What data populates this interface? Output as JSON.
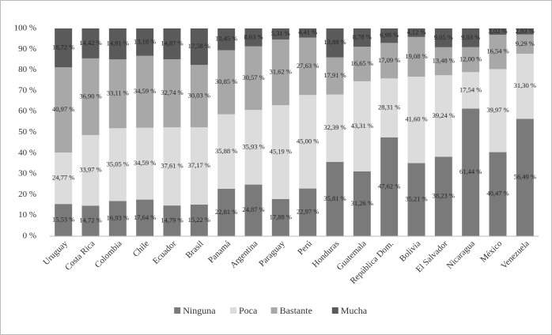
{
  "chart_data": {
    "type": "stacked-bar",
    "categories": [
      "Uruguay",
      "Costa Rica",
      "Colombia",
      "Chile",
      "Ecuador",
      "Brasil",
      "Panamá",
      "Argentina",
      "Paraguay",
      "Perú",
      "Honduras",
      "Guatemala",
      "República Dom.",
      "Bolivia",
      "El Salvador",
      "Nicaragua",
      "México",
      "Venezuela"
    ],
    "series": [
      {
        "name": "Ninguna",
        "color": "#7a7a7a",
        "values": [
          15.53,
          14.72,
          16.93,
          17.64,
          14.79,
          15.22,
          22.81,
          24.87,
          17.88,
          22.97,
          35.81,
          31.26,
          47.62,
          35.21,
          38.23,
          61.44,
          40.47,
          56.49
        ],
        "value_labels": [
          "15,53 %",
          "14,72 %",
          "16,93 %",
          "17,64 %",
          "14,79 %",
          "15,22 %",
          "22,81 %",
          "24,87 %",
          "17,88 %",
          "22,97 %",
          "35,81 %",
          "31,26 %",
          "47,62 %",
          "35,21 %",
          "38,23 %",
          "61,44 %",
          "40,47 %",
          "56,49 %"
        ]
      },
      {
        "name": "Poca",
        "color": "#dcdcdc",
        "values": [
          24.77,
          33.97,
          35.05,
          34.59,
          37.61,
          37.17,
          35.88,
          35.93,
          45.19,
          45.0,
          32.39,
          43.31,
          28.31,
          41.6,
          39.24,
          17.54,
          39.97,
          31.3
        ],
        "value_labels": [
          "24,77 %",
          "33,97 %",
          "35,05 %",
          "34,59 %",
          "37,61 %",
          "37,17 %",
          "35,88 %",
          "35,93 %",
          "45,19 %",
          "45,00 %",
          "32,39 %",
          "43,31 %",
          "28,31 %",
          "41,60 %",
          "39,24 %",
          "17,54 %",
          "39,97 %",
          "31,30 %"
        ]
      },
      {
        "name": "Bastante",
        "color": "#a8a8a8",
        "values": [
          40.97,
          36.9,
          33.11,
          34.59,
          32.74,
          30.03,
          30.85,
          30.57,
          31.62,
          27.63,
          17.91,
          16.65,
          17.09,
          19.08,
          13.48,
          12.0,
          16.54,
          9.29
        ],
        "value_labels": [
          "40,97 %",
          "36,90 %",
          "33,11 %",
          "34,59 %",
          "32,74 %",
          "30,03 %",
          "30,85 %",
          "30,57 %",
          "31,62 %",
          "27,63 %",
          "17,91 %",
          "16,65 %",
          "17,09 %",
          "19,08 %",
          "13,48 %",
          "12,00 %",
          "16,54 %",
          "9,29 %"
        ]
      },
      {
        "name": "Mucha",
        "color": "#5a5a5a",
        "values": [
          18.72,
          14.42,
          14.91,
          13.18,
          14.87,
          17.58,
          10.45,
          8.63,
          5.31,
          4.41,
          13.88,
          8.78,
          6.98,
          4.12,
          9.05,
          9.03,
          3.02,
          2.93
        ],
        "value_labels": [
          "18,72 %",
          "14,42 %",
          "14,91 %",
          "13,18 %",
          "14,87 %",
          "17,58 %",
          "10,45 %",
          "8,63 %",
          "5,31 %",
          "4,41 %",
          "13,88 %",
          "8,78 %",
          "6,98 %",
          "4,12 %",
          "9,05 %",
          "9,03 %",
          "3,02 %",
          "2,93 %"
        ]
      }
    ],
    "ylim": [
      0,
      100
    ],
    "yticks": [
      {
        "value": 0,
        "label": "0 %"
      },
      {
        "value": 10,
        "label": "10 %"
      },
      {
        "value": 20,
        "label": "20 %"
      },
      {
        "value": 30,
        "label": "30 %"
      },
      {
        "value": 40,
        "label": "40 %"
      },
      {
        "value": 50,
        "label": "50 %"
      },
      {
        "value": 60,
        "label": "60 %"
      },
      {
        "value": 70,
        "label": "70 %"
      },
      {
        "value": 80,
        "label": "80 %"
      },
      {
        "value": 90,
        "label": "90 %"
      },
      {
        "value": 100,
        "label": "100 %"
      }
    ],
    "grid": false,
    "legend": "bottom"
  }
}
